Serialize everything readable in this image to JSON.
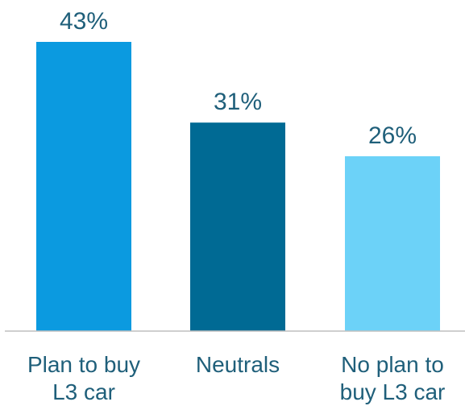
{
  "chart_data": {
    "type": "bar",
    "title": "",
    "xlabel": "",
    "ylabel": "",
    "categories": [
      [
        "Plan to buy",
        "L3 car"
      ],
      [
        "Neutrals"
      ],
      [
        "No plan to",
        "buy L3 car"
      ]
    ],
    "values": [
      43,
      31,
      26
    ],
    "value_labels": [
      "43%",
      "31%",
      "26%"
    ],
    "bar_colors": [
      "#0b9ae0",
      "#006a94",
      "#6cd2f8"
    ],
    "ylim": [
      0,
      43
    ],
    "grid": false,
    "legend": "none",
    "axis_color": "#bfbfbf",
    "text_color": "#1f5f7a"
  }
}
